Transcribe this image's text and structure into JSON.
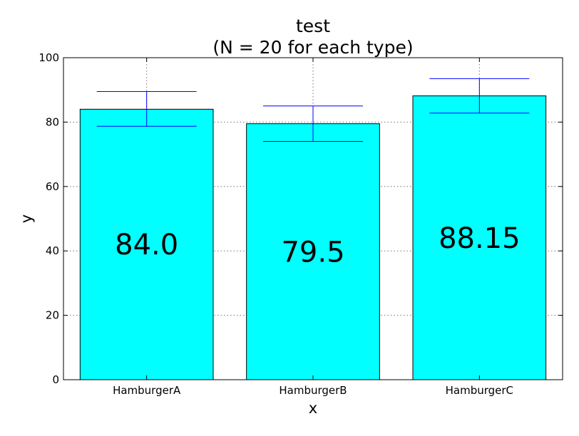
{
  "chart_data": {
    "type": "bar",
    "title": [
      "test",
      "(N = 20 for each type)"
    ],
    "xlabel": "x",
    "ylabel": "y",
    "categories": [
      "HamburgerA",
      "HamburgerB",
      "HamburgerC"
    ],
    "values": [
      84.0,
      79.5,
      88.15
    ],
    "value_labels": [
      "84.0",
      "79.5",
      "88.15"
    ],
    "error_low": [
      78.7,
      74.0,
      82.8
    ],
    "error_high": [
      89.5,
      85.0,
      93.5
    ],
    "ylim": [
      0,
      100
    ],
    "yticks": [
      0,
      20,
      40,
      60,
      80,
      100
    ],
    "ytick_labels": [
      "0",
      "20",
      "40",
      "60",
      "80",
      "100"
    ],
    "grid": true,
    "colors": {
      "bar_fill": "#00ffff",
      "bar_edge": "#000000",
      "error_bar": "#0000ff"
    }
  }
}
